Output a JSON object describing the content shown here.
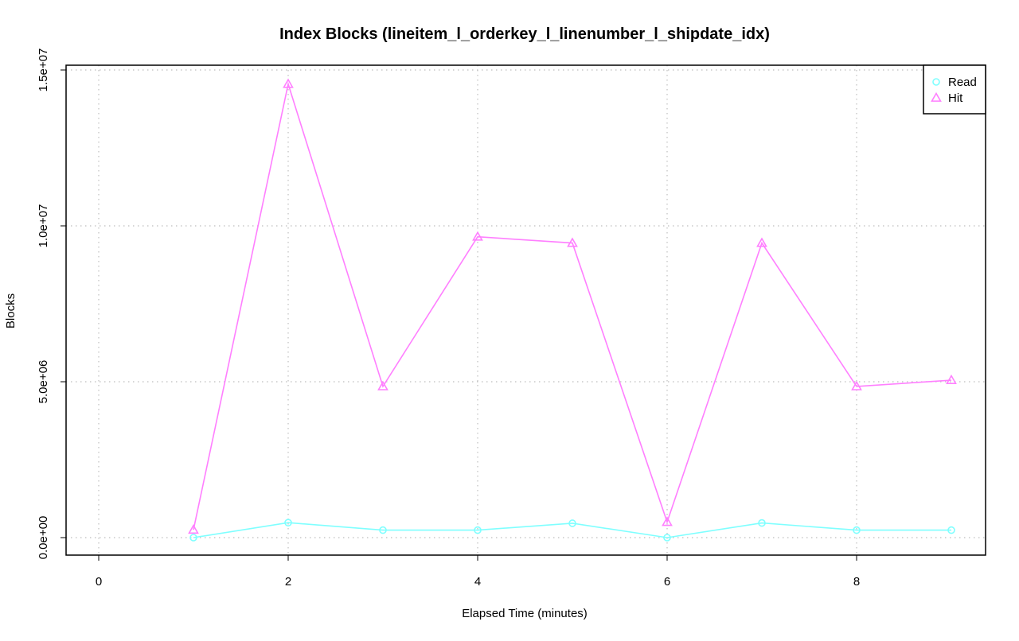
{
  "chart_data": {
    "type": "line",
    "title": "Index Blocks (lineitem_l_orderkey_l_linenumber_l_shipdate_idx)",
    "xlabel": "Elapsed Time (minutes)",
    "ylabel": "Blocks",
    "xlim": [
      0,
      9
    ],
    "ylim": [
      0,
      15000000
    ],
    "x_ticks": [
      0,
      2,
      4,
      6,
      8
    ],
    "x_tick_labels": [
      "0",
      "2",
      "4",
      "6",
      "8"
    ],
    "y_ticks": [
      0,
      5000000,
      10000000,
      15000000
    ],
    "y_tick_labels": [
      "0.0e+00",
      "5.0e+06",
      "1.0e+07",
      "1.5e+07"
    ],
    "grid": true,
    "legend_position": "top-right",
    "x": [
      1,
      2,
      3,
      4,
      5,
      6,
      7,
      8,
      9
    ],
    "series": [
      {
        "name": "Read",
        "marker": "circle",
        "color": "#7fffff",
        "values": [
          0,
          480000,
          240000,
          240000,
          460000,
          0,
          470000,
          240000,
          240000
        ]
      },
      {
        "name": "Hit",
        "marker": "triangle",
        "color": "#ff7fff",
        "values": [
          250000,
          14550000,
          4850000,
          9650000,
          9450000,
          500000,
          9450000,
          4850000,
          5050000
        ]
      }
    ]
  }
}
